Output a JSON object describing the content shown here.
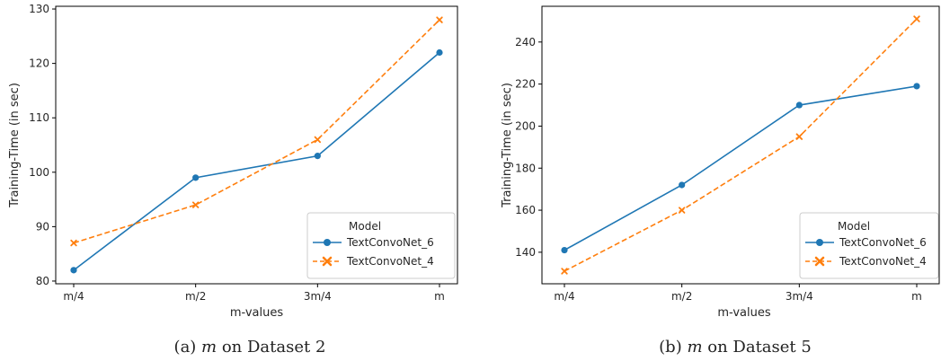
{
  "chart_data": [
    {
      "type": "line",
      "categories": [
        "m/4",
        "m/2",
        "3m/4",
        "m"
      ],
      "xlabel": "m-values",
      "ylabel": "Training-Time (in sec)",
      "ylim": [
        79.5,
        130.5
      ],
      "yticks": [
        80,
        90,
        100,
        110,
        120,
        130
      ],
      "legend": {
        "title": "Model",
        "placement": "lower-right"
      },
      "series": [
        {
          "name": "TextConvoNet_6",
          "values": [
            82,
            99,
            103,
            122
          ],
          "color": "#1f77b4",
          "marker": "circle",
          "dash": "solid"
        },
        {
          "name": "TextConvoNet_4",
          "values": [
            87,
            94,
            106,
            128
          ],
          "color": "#ff7f0e",
          "marker": "x",
          "dash": "dashed"
        }
      ],
      "caption": {
        "prefix": "(a) ",
        "italic": "m",
        "suffix": " on Dataset 2"
      }
    },
    {
      "type": "line",
      "categories": [
        "m/4",
        "m/2",
        "3m/4",
        "m"
      ],
      "xlabel": "m-values",
      "ylabel": "Training-Time (in sec)",
      "ylim": [
        125,
        257
      ],
      "yticks": [
        140,
        160,
        180,
        200,
        220,
        240
      ],
      "legend": {
        "title": "Model",
        "placement": "lower-right"
      },
      "series": [
        {
          "name": "TextConvoNet_6",
          "values": [
            141,
            172,
            210,
            219
          ],
          "color": "#1f77b4",
          "marker": "circle",
          "dash": "solid"
        },
        {
          "name": "TextConvoNet_4",
          "values": [
            131,
            160,
            195,
            251
          ],
          "color": "#ff7f0e",
          "marker": "x",
          "dash": "dashed"
        }
      ],
      "caption": {
        "prefix": "(b) ",
        "italic": "m",
        "suffix": " on Dataset 5"
      }
    }
  ]
}
